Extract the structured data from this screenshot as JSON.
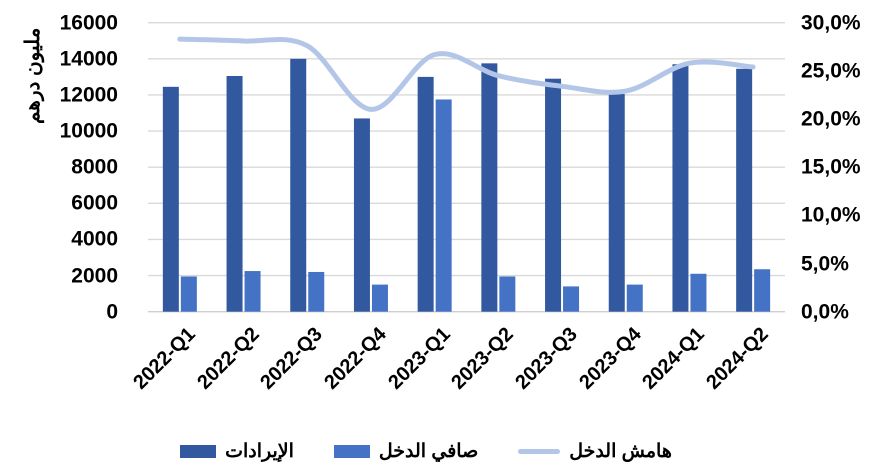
{
  "chart_data": {
    "type": "combo-bar-line",
    "categories": [
      "2022-Q1",
      "2022-Q2",
      "2022-Q3",
      "2022-Q4",
      "2023-Q1",
      "2023-Q2",
      "2023-Q3",
      "2023-Q4",
      "2024-Q1",
      "2024-Q2"
    ],
    "series": [
      {
        "id": "revenues",
        "name": "الإيرادات",
        "type": "bar",
        "axis": "left",
        "color": "#32599F",
        "values": [
          12450,
          13050,
          14000,
          10700,
          13000,
          13750,
          12900,
          12050,
          13700,
          13450
        ]
      },
      {
        "id": "net-income",
        "name": "صافي الدخل",
        "type": "bar",
        "axis": "left",
        "color": "#4472C4",
        "values": [
          1950,
          2250,
          2200,
          1500,
          11750,
          1950,
          1400,
          1500,
          2100,
          2350
        ]
      },
      {
        "id": "income-margin",
        "name": "هامش الدخل",
        "type": "line",
        "axis": "right",
        "color": "#B3C6E7",
        "values": [
          28.3,
          28.1,
          27.6,
          21.0,
          26.7,
          24.5,
          23.4,
          22.9,
          25.8,
          25.4
        ]
      }
    ],
    "left_axis": {
      "label": "مليون درهم",
      "min": 0,
      "max": 16000,
      "step": 2000,
      "tick_labels": [
        "16000",
        "14000",
        "12000",
        "10000",
        "8000",
        "6000",
        "4000",
        "2000",
        "0"
      ]
    },
    "right_axis": {
      "min": 0,
      "max": 30,
      "step": 5,
      "tick_labels": [
        "30,0%",
        "25,0%",
        "20,0%",
        "15,0%",
        "10,0%",
        "5,0%",
        "0,0%"
      ]
    },
    "legend_position": "bottom",
    "grid": true,
    "colors": {
      "gridline": "#D9D9D9",
      "axis_line": "#CFCFCF",
      "text": "#000000",
      "background": "#FFFFFF"
    }
  }
}
